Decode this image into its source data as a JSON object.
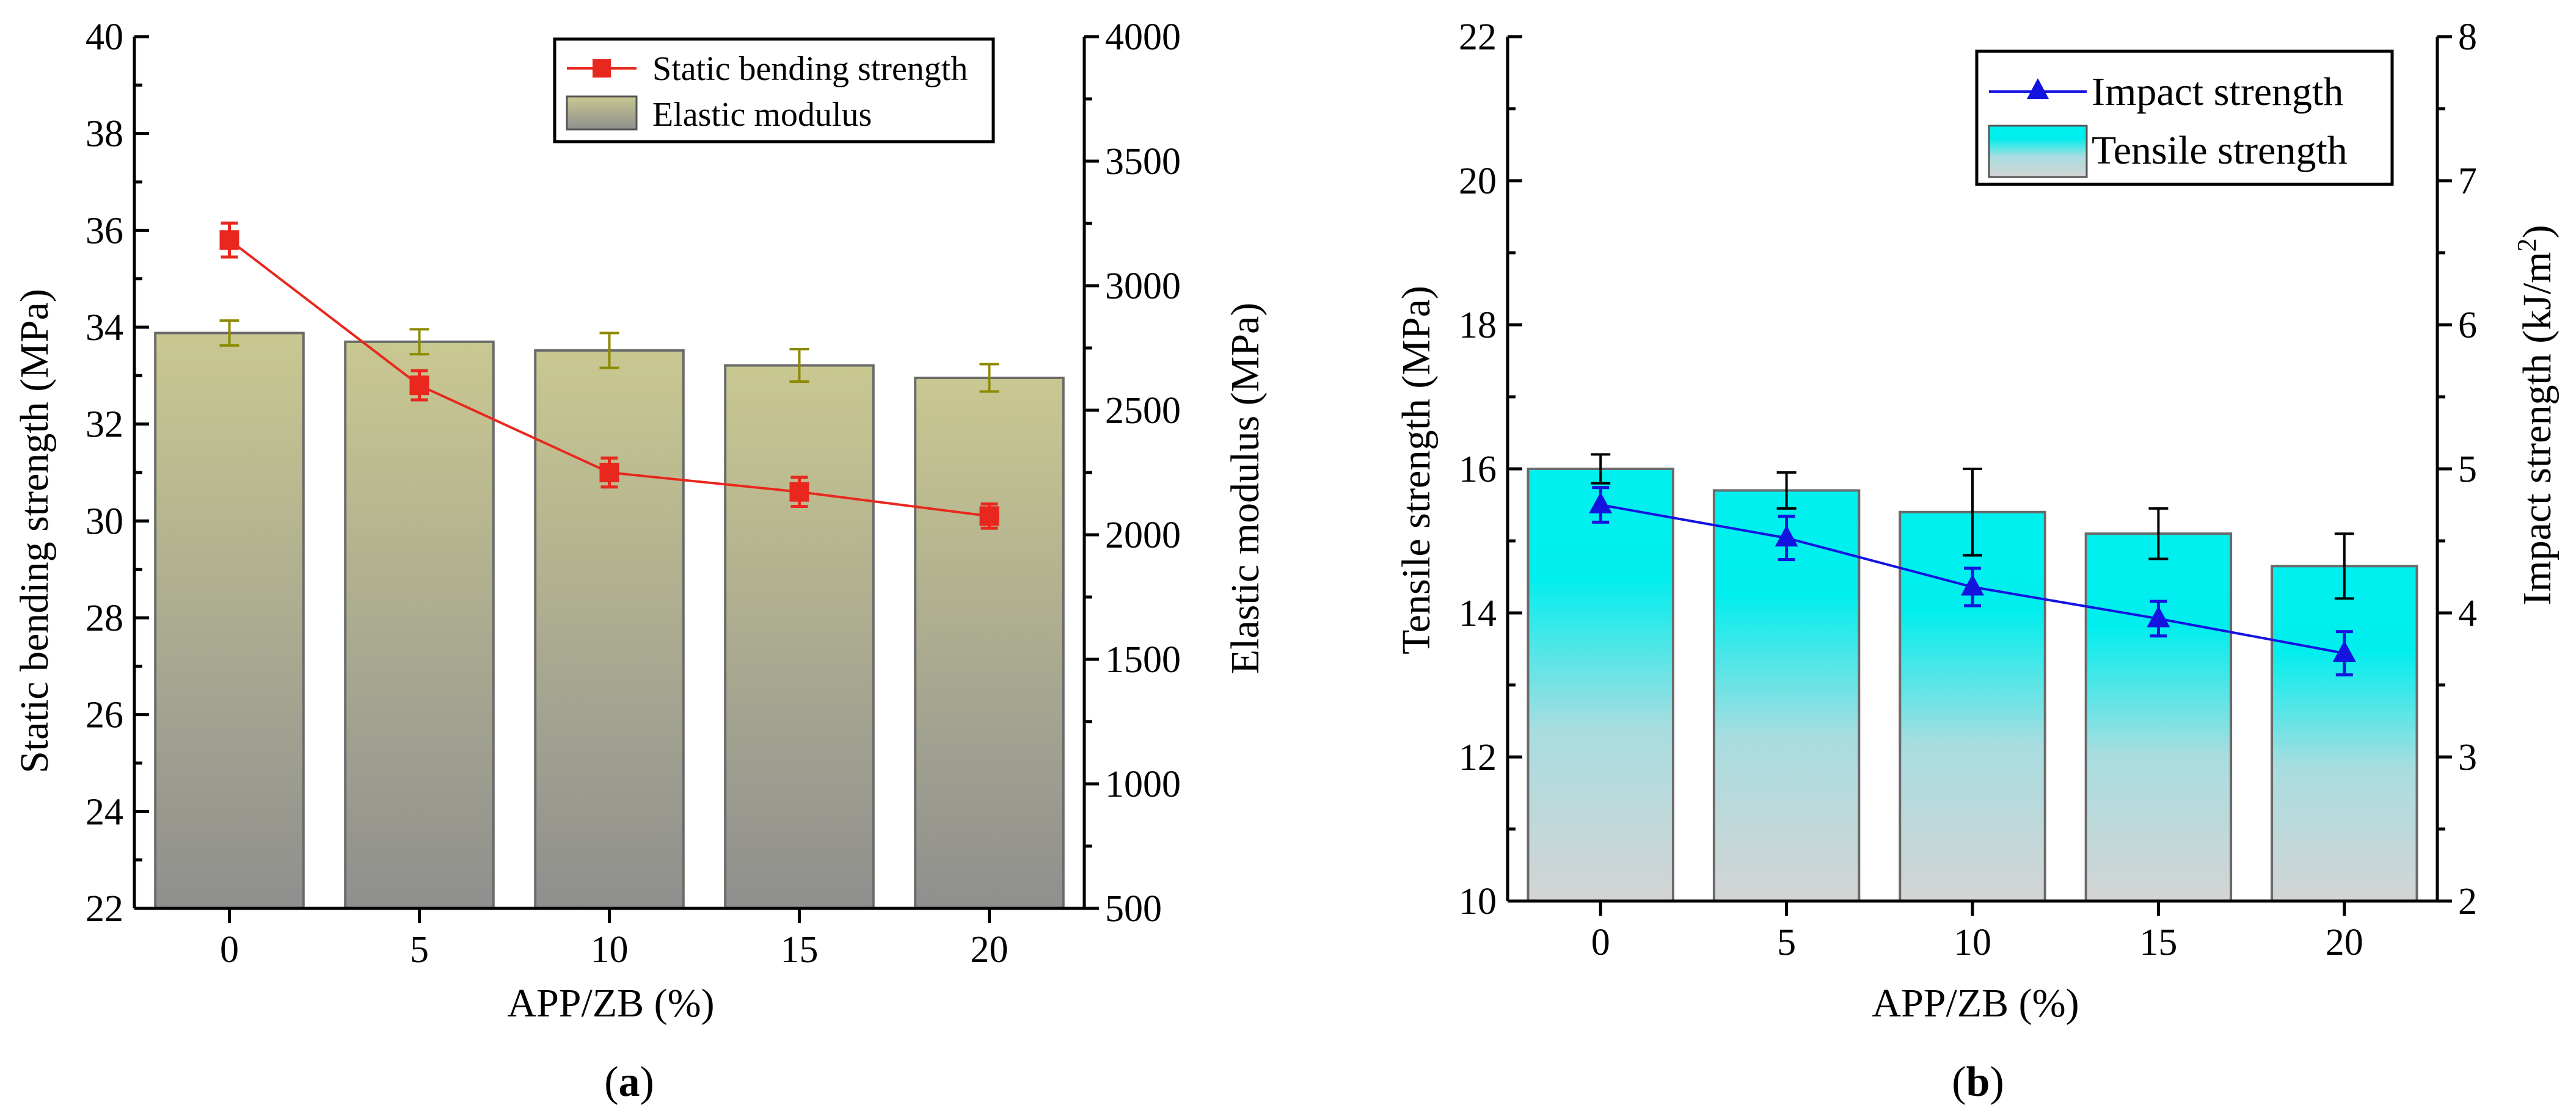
{
  "chart_data": [
    {
      "type": "bar",
      "panel_label": "a",
      "xlabel": "APP/ZB (%)",
      "categories": [
        "0",
        "5",
        "10",
        "15",
        "20"
      ],
      "y_left": {
        "label": "Static bending strength (MPa)",
        "lim": [
          22,
          40
        ],
        "ticks": [
          22,
          24,
          26,
          28,
          30,
          32,
          34,
          36,
          38,
          40
        ]
      },
      "y_right": {
        "label": "Elastic modulus (MPa)",
        "lim": [
          500,
          4000
        ],
        "ticks": [
          500,
          1000,
          1500,
          2000,
          2500,
          3000,
          3500,
          4000
        ]
      },
      "series": [
        {
          "name": "Elastic modulus",
          "kind": "bar",
          "axis": "right",
          "values": [
            2810,
            2775,
            2740,
            2680,
            2630
          ],
          "errors": [
            50,
            50,
            70,
            65,
            55
          ],
          "color_top": "#c9c891",
          "color_bottom": "#8f8f8f",
          "error_color": "#8c8a00"
        },
        {
          "name": "Static bending strength",
          "kind": "line",
          "marker": "square",
          "axis": "left",
          "values": [
            35.8,
            32.8,
            31.0,
            30.6,
            30.1
          ],
          "errors": [
            0.35,
            0.3,
            0.3,
            0.3,
            0.25
          ],
          "color": "#e8281e"
        }
      ],
      "legend": {
        "position": "top-right",
        "entries": [
          "Static bending strength",
          "Elastic modulus"
        ]
      }
    },
    {
      "type": "bar",
      "panel_label": "b",
      "xlabel": "APP/ZB (%)",
      "categories": [
        "0",
        "5",
        "10",
        "15",
        "20"
      ],
      "y_left": {
        "label": "Tensile strength  (MPa)",
        "lim": [
          10,
          22
        ],
        "ticks": [
          10,
          12,
          14,
          16,
          18,
          20,
          22
        ]
      },
      "y_right": {
        "label": "Impact strength (kJ/m",
        "label_sup": "2",
        "label_end": ")",
        "lim": [
          2,
          8
        ],
        "ticks": [
          2,
          3,
          4,
          5,
          6,
          7,
          8
        ]
      },
      "series": [
        {
          "name": "Tensile strength",
          "kind": "bar",
          "axis": "left",
          "values": [
            16.0,
            15.7,
            15.4,
            15.1,
            14.65
          ],
          "errors": [
            0.2,
            0.25,
            0.6,
            0.35,
            0.45
          ],
          "color_top": "#00f0f0",
          "color_bottom": "#d2d2d2",
          "error_color": "#000000"
        },
        {
          "name": "Impact strength",
          "kind": "line",
          "marker": "triangle",
          "axis": "right",
          "values": [
            4.75,
            4.52,
            4.18,
            3.96,
            3.72
          ],
          "errors": [
            0.12,
            0.15,
            0.13,
            0.12,
            0.15
          ],
          "color": "#1414e0"
        }
      ],
      "legend": {
        "position": "top-right",
        "entries": [
          "Impact strength",
          "Tensile strength"
        ]
      }
    }
  ]
}
